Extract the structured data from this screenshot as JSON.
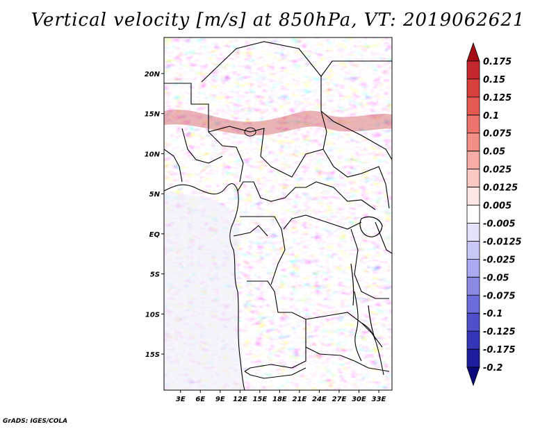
{
  "title": "Vertical velocity [m/s] at 850hPa, VT: 2019062621",
  "credit": "GrADS: IGES/COLA",
  "map": {
    "lon_labels": [
      "3E",
      "6E",
      "9E",
      "12E",
      "15E",
      "18E",
      "21E",
      "24E",
      "27E",
      "30E",
      "33E"
    ],
    "lat_labels": [
      "20N",
      "15N",
      "10N",
      "5N",
      "EQ",
      "5S",
      "10S",
      "15S"
    ],
    "lon_values": [
      3,
      6,
      9,
      12,
      15,
      18,
      21,
      24,
      27,
      30,
      33
    ],
    "lat_values": [
      20,
      15,
      10,
      5,
      0,
      -5,
      -10,
      -15
    ],
    "lon_range": [
      0.5,
      35
    ],
    "lat_range": [
      -19.5,
      24.5
    ]
  },
  "colorbar": {
    "levels": [
      "0.175",
      "0.15",
      "0.125",
      "0.1",
      "0.075",
      "0.05",
      "0.025",
      "0.0125",
      "0.005",
      "-0.005",
      "-0.0125",
      "-0.025",
      "-0.05",
      "-0.075",
      "-0.1",
      "-0.125",
      "-0.175",
      "-0.2"
    ],
    "colors": [
      "#a50f15",
      "#c2282d",
      "#d8403c",
      "#e45a53",
      "#ec746c",
      "#f29088",
      "#f7ada7",
      "#fbc9c4",
      "#fde6e3",
      "#ffffff",
      "#e3e3fb",
      "#c8c8f6",
      "#aaaaf0",
      "#8b8be6",
      "#6c6cda",
      "#4f4fcc",
      "#3535b8",
      "#1d1d9c",
      "#0b0b7e"
    ]
  }
}
